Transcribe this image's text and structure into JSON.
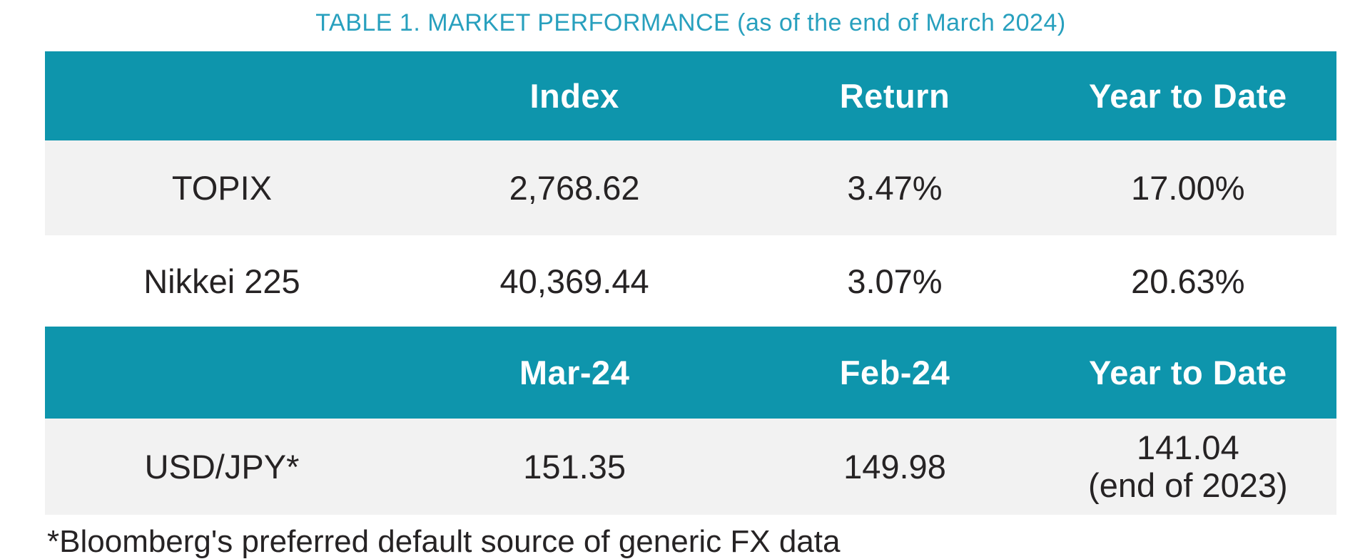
{
  "title": {
    "main": "TABLE 1. MARKET PERFORMANCE",
    "suffix": " (as of the end of March 2024)"
  },
  "table1": {
    "headers": [
      "",
      "Index",
      "Return",
      "Year to Date"
    ],
    "rows": [
      {
        "label": "TOPIX",
        "index": "2,768.62",
        "return": "3.47%",
        "ytd": "17.00%"
      },
      {
        "label": "Nikkei 225",
        "index": "40,369.44",
        "return": "3.07%",
        "ytd": "20.63%"
      }
    ]
  },
  "table2": {
    "headers": [
      "",
      "Mar-24",
      "Feb-24",
      "Year to Date"
    ],
    "rows": [
      {
        "label": "USD/JPY*",
        "mar": "151.35",
        "feb": "149.98",
        "ytd_line1": "141.04",
        "ytd_line2": "(end of 2023)"
      }
    ]
  },
  "footnote": "*Bloomberg's preferred default source of generic FX data",
  "colors": {
    "header_teal": "#0E95AC",
    "title_teal": "#28A0BE",
    "row_gray": "#F2F2F2",
    "text_dark": "#262324",
    "header_text": "#FFFFFF"
  }
}
